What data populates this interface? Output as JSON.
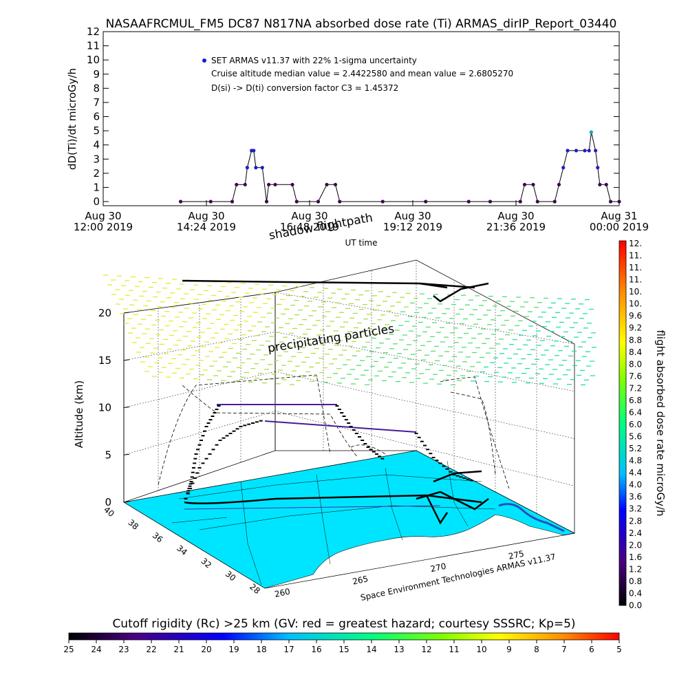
{
  "colors": {
    "map_sea": "#00e5ff",
    "map_land": "#ffffff",
    "flight_track": "#000000",
    "series_low": "#3a0a4a",
    "series_mid": "#2020c0",
    "series_high": "#1aa0d0",
    "shadow_track": "#000000"
  },
  "chart_data": [
    {
      "type": "scatter",
      "title": "NASAAFRCMUL_FM5 DC87 N817NA absorbed dose rate (Ti) ARMAS_dirIP_Report_03440",
      "ylabel": "dD(Ti)/dt microGy/h",
      "xlabel": "UT time",
      "ylim": [
        0,
        12
      ],
      "yticks": [
        "0",
        "1",
        "2",
        "3",
        "4",
        "5",
        "6",
        "7",
        "8",
        "9",
        "10",
        "11",
        "12"
      ],
      "xticks": [
        {
          "date": "Aug 30",
          "time": "12:00 2019"
        },
        {
          "date": "Aug 30",
          "time": "14:24 2019"
        },
        {
          "date": "Aug 30",
          "time": "16:48 2019"
        },
        {
          "date": "Aug 30",
          "time": "19:12 2019"
        },
        {
          "date": "Aug 30",
          "time": "21:36 2019"
        },
        {
          "date": "Aug 31",
          "time": "00:00 2019"
        }
      ],
      "xlim_hours": [
        12,
        24
      ],
      "legend": "SET ARMAS v11.37 with 22% 1-sigma uncertainty",
      "annotations": [
        "Cruise altitude median value = 2.4422580 and mean value = 2.6805270",
        "D(si) -> D(ti) conversion factor C3 = 1.45372"
      ],
      "series": [
        {
          "values": [
            [
              13.8,
              0
            ],
            [
              14.5,
              0
            ],
            [
              15.0,
              0
            ],
            [
              15.1,
              1.2
            ],
            [
              15.3,
              1.2
            ],
            [
              15.35,
              2.4
            ],
            [
              15.45,
              3.6
            ],
            [
              15.5,
              3.6
            ],
            [
              15.55,
              2.4
            ],
            [
              15.7,
              2.4
            ],
            [
              15.8,
              0
            ],
            [
              15.85,
              1.2
            ],
            [
              16.0,
              1.2
            ],
            [
              16.4,
              1.2
            ],
            [
              16.5,
              0
            ],
            [
              17.0,
              0
            ],
            [
              17.2,
              1.2
            ],
            [
              17.4,
              1.2
            ],
            [
              17.5,
              0
            ],
            [
              18.5,
              0
            ],
            [
              19.5,
              0
            ],
            [
              20.5,
              0
            ],
            [
              21.0,
              0
            ],
            [
              21.7,
              0
            ],
            [
              21.8,
              1.2
            ],
            [
              22.0,
              1.2
            ],
            [
              22.1,
              0
            ],
            [
              22.5,
              0
            ],
            [
              22.6,
              1.2
            ],
            [
              22.7,
              2.4
            ],
            [
              22.8,
              3.6
            ],
            [
              23.0,
              3.6
            ],
            [
              23.2,
              3.6
            ],
            [
              23.3,
              3.6
            ],
            [
              23.35,
              4.9
            ],
            [
              23.45,
              3.6
            ],
            [
              23.5,
              2.4
            ],
            [
              23.55,
              1.2
            ],
            [
              23.7,
              1.2
            ],
            [
              23.8,
              0
            ],
            [
              24.0,
              0
            ]
          ]
        }
      ]
    },
    {
      "type": "scatter",
      "title": "",
      "zlabel": "Altitude (km)",
      "zticks": [
        "0",
        "5",
        "10",
        "15",
        "20"
      ],
      "zlim": [
        0,
        20
      ],
      "lat_ticks": [
        "40",
        "38",
        "36",
        "34",
        "32",
        "30",
        "28"
      ],
      "lon_ticks": [
        "260",
        "265",
        "270",
        "275"
      ],
      "annotations": [
        "shadow flightpath",
        "precipitating particles"
      ],
      "credit": "Space Environment Technologies ARMAS v11.37",
      "colorbar": {
        "label": "flight absorbed dose rate microGy/h",
        "ticks": [
          "12.",
          "11.",
          "11.",
          "11.",
          "10.",
          "10.",
          "9.6",
          "9.2",
          "8.8",
          "8.4",
          "8.0",
          "7.6",
          "7.2",
          "6.8",
          "6.4",
          "6.0",
          "5.6",
          "5.2",
          "4.8",
          "4.4",
          "4.0",
          "3.6",
          "3.2",
          "2.8",
          "2.4",
          "2.0",
          "1.6",
          "1.2",
          "0.8",
          "0.4",
          "0.0"
        ]
      }
    },
    {
      "type": "heatmap",
      "title": "Cutoff rigidity (Rc) >25 km (GV: red = greatest hazard; courtesy SSSRC; Kp=5)",
      "ticks": [
        "25",
        "24",
        "23",
        "22",
        "21",
        "20",
        "19",
        "18",
        "17",
        "16",
        "15",
        "14",
        "13",
        "12",
        "11",
        "10",
        "9",
        "8",
        "7",
        "6",
        "5"
      ]
    }
  ]
}
